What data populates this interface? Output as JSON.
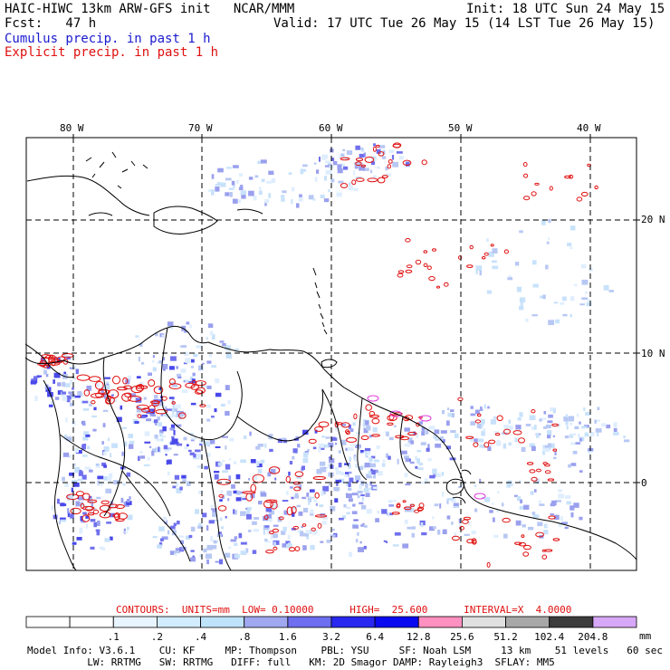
{
  "header": {
    "title_left": "HAIC-HIWC 13km ARW-GFS init   NCAR/MMM",
    "init": "Init: 18 UTC Sun 24 May 15",
    "fcst": "Fcst:   47 h",
    "valid": "Valid: 17 UTC Tue 26 May 15 (14 LST Tue 26 May 15)",
    "cumulus_legend": "Cumulus precip. in past 1 h",
    "explicit_legend": "Explicit precip. in past 1 h",
    "cumulus_color": "#1a1ad0",
    "explicit_color": "#e01010"
  },
  "map": {
    "lon_labels": [
      "80 W",
      "70 W",
      "60 W",
      "50 W",
      "40 W"
    ],
    "lat_labels": [
      "20 N",
      "10 N",
      "0"
    ],
    "grid": "dashed"
  },
  "contours": {
    "line": "CONTOURS:  UNITS=mm  LOW= 0.10000      HIGH=  25.600      INTERVAL=X  4.0000"
  },
  "colorbar": {
    "labels": [
      ".1",
      ".2",
      ".4",
      ".8",
      "1.6",
      "3.2",
      "6.4",
      "12.8",
      "25.6",
      "51.2",
      "102.4",
      "204.8"
    ],
    "unit": "mm",
    "colors": [
      "#ffffff",
      "#ffffff",
      "#e8f4ff",
      "#d2ecff",
      "#bfe3fb",
      "#a0a8f0",
      "#6e6ef0",
      "#2828f0",
      "#0a0af0",
      "#ff90c0",
      "#e0e0e0",
      "#a8a8a8",
      "#3c3c3c",
      "#d8a8f8"
    ]
  },
  "footer": {
    "line1": "Model Info: V3.6.1    CU: KF     MP: Thompson    PBL: YSU     SF: Noah LSM     13 km    51 levels   60 sec",
    "line2": "          LW: RRTMG   SW: RRTMG   DIFF: full   KM: 2D Smagor DAMP: Rayleigh3  SFLAY: MM5"
  }
}
